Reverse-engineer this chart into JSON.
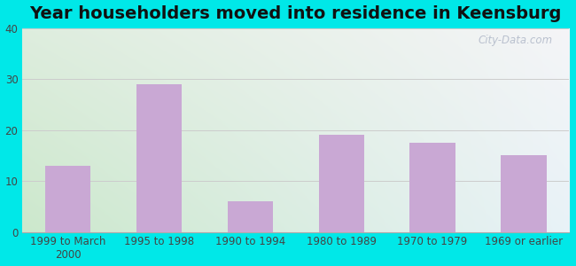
{
  "title": "Year householders moved into residence in Keensburg",
  "categories": [
    "1999 to March\n2000",
    "1995 to 1998",
    "1990 to 1994",
    "1980 to 1989",
    "1970 to 1979",
    "1969 or earlier"
  ],
  "values": [
    13,
    29,
    6,
    19,
    17.5,
    15
  ],
  "bar_color": "#c9a8d4",
  "ylim": [
    0,
    40
  ],
  "yticks": [
    0,
    10,
    20,
    30,
    40
  ],
  "background_outer": "#00e8e8",
  "background_topleft": "#d8ede0",
  "background_topright": "#f5f5f8",
  "background_bottomleft": "#cceacc",
  "background_bottomright": "#eaf0f8",
  "grid_color": "#cccccc",
  "title_fontsize": 14,
  "tick_fontsize": 8.5,
  "watermark": "City-Data.com",
  "border_cyan": "#00e8e8"
}
